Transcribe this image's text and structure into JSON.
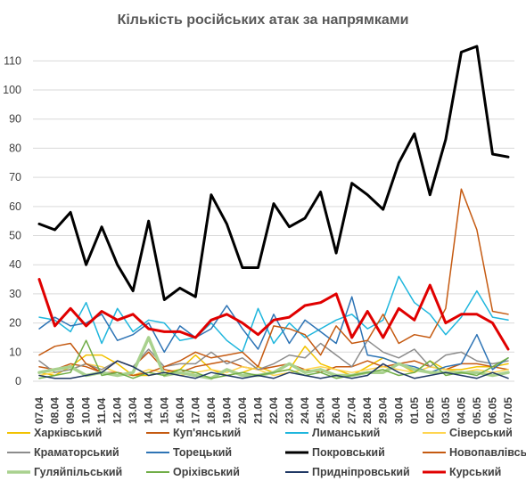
{
  "chart_data": {
    "type": "line",
    "title": "Кількість російських атак за напрямками",
    "xlabel": "",
    "ylabel": "",
    "ylim": [
      0,
      115
    ],
    "yticks": [
      0,
      10,
      20,
      30,
      40,
      50,
      60,
      70,
      80,
      90,
      100,
      110
    ],
    "grid": true,
    "legend_position": "bottom",
    "categories": [
      "07.04",
      "08.04",
      "09.04",
      "10.04",
      "11.04",
      "12.04",
      "13.04",
      "14.04",
      "15.04",
      "16.04",
      "17.04",
      "18.04",
      "19.04",
      "20.04",
      "21.04",
      "22.04",
      "23.04",
      "24.04",
      "25.04",
      "26.04",
      "27.04",
      "28.04",
      "29.04",
      "30.04",
      "01.05",
      "02.05",
      "03.05",
      "04.05",
      "05.05",
      "06.05",
      "07.05"
    ],
    "series": [
      {
        "name": "Харківський",
        "color": "#f2c200",
        "width": 1.5,
        "values": [
          3,
          2,
          5,
          9,
          9,
          6,
          2,
          2,
          3,
          4,
          9,
          4,
          2,
          3,
          5,
          3,
          4,
          12,
          6,
          4,
          2,
          5,
          8,
          6,
          3,
          7,
          4,
          4,
          5,
          5,
          6
        ]
      },
      {
        "name": "Куп'янський",
        "color": "#c55a11",
        "width": 1.5,
        "values": [
          5,
          4,
          6,
          5,
          3,
          7,
          5,
          10,
          4,
          3,
          5,
          6,
          7,
          5,
          4,
          5,
          6,
          4,
          3,
          5,
          5,
          7,
          5,
          6,
          7,
          5,
          4,
          6,
          6,
          5,
          4
        ]
      },
      {
        "name": "Лиманський",
        "color": "#1fb6dd",
        "width": 1.5,
        "values": [
          22,
          21,
          17,
          27,
          13,
          25,
          17,
          21,
          20,
          14,
          15,
          20,
          14,
          10,
          25,
          13,
          20,
          15,
          18,
          21,
          23,
          18,
          21,
          36,
          27,
          23,
          16,
          22,
          31,
          22,
          21
        ]
      },
      {
        "name": "Сіверський",
        "color": "#ffd54f",
        "width": 1.5,
        "values": [
          2,
          3,
          4,
          6,
          5,
          3,
          2,
          4,
          3,
          2,
          3,
          4,
          3,
          5,
          4,
          2,
          3,
          4,
          5,
          4,
          3,
          4,
          5,
          4,
          3,
          5,
          4,
          3,
          4,
          3,
          4
        ]
      },
      {
        "name": "Краматорський",
        "color": "#8c8c8c",
        "width": 1.5,
        "values": [
          7,
          3,
          4,
          6,
          4,
          7,
          5,
          11,
          5,
          6,
          6,
          10,
          6,
          8,
          4,
          6,
          9,
          8,
          13,
          9,
          5,
          14,
          10,
          8,
          11,
          5,
          9,
          10,
          7,
          6,
          7
        ]
      },
      {
        "name": "Торецький",
        "color": "#2e74b5",
        "width": 1.5,
        "values": [
          18,
          22,
          19,
          20,
          23,
          14,
          16,
          20,
          10,
          19,
          15,
          18,
          26,
          18,
          11,
          23,
          13,
          21,
          17,
          13,
          29,
          9,
          8,
          6,
          5,
          3,
          5,
          6,
          16,
          4,
          8
        ]
      },
      {
        "name": "Покровський",
        "color": "#000000",
        "width": 3.0,
        "values": [
          54,
          52,
          58,
          40,
          53,
          40,
          31,
          55,
          28,
          32,
          29,
          64,
          54,
          39,
          39,
          61,
          53,
          56,
          65,
          44,
          68,
          64,
          59,
          75,
          85,
          64,
          83,
          113,
          115,
          78,
          77
        ]
      },
      {
        "name": "Новопавлівський",
        "color": "#c55a11",
        "width": 1.5,
        "values": [
          9,
          12,
          13,
          6,
          3,
          3,
          2,
          3,
          5,
          7,
          10,
          8,
          9,
          10,
          5,
          19,
          18,
          16,
          9,
          19,
          13,
          14,
          23,
          13,
          16,
          15,
          25,
          66,
          52,
          24,
          23
        ]
      },
      {
        "name": "Гуляйпільський",
        "color": "#a9d18e",
        "width": 3.5,
        "values": [
          3,
          4,
          5,
          2,
          3,
          2,
          3,
          15,
          2,
          3,
          2,
          1,
          4,
          2,
          2,
          3,
          6,
          3,
          4,
          2,
          2,
          3,
          3,
          6,
          4,
          3,
          3,
          3,
          3,
          2,
          3
        ]
      },
      {
        "name": "Оріхівський",
        "color": "#70ad47",
        "width": 1.5,
        "values": [
          1,
          2,
          3,
          14,
          2,
          3,
          1,
          3,
          2,
          4,
          3,
          1,
          2,
          3,
          2,
          3,
          4,
          2,
          3,
          1,
          2,
          3,
          4,
          2,
          3,
          7,
          2,
          3,
          2,
          5,
          8
        ]
      },
      {
        "name": "Придніпровський",
        "color": "#1f3864",
        "width": 1.5,
        "values": [
          2,
          1,
          1,
          2,
          3,
          7,
          5,
          2,
          3,
          2,
          1,
          3,
          2,
          1,
          2,
          1,
          3,
          2,
          1,
          2,
          1,
          2,
          6,
          3,
          1,
          2,
          3,
          2,
          1,
          3,
          1
        ]
      },
      {
        "name": "Курський",
        "color": "#e00000",
        "width": 3.0,
        "values": [
          35,
          19,
          25,
          19,
          24,
          21,
          23,
          18,
          17,
          17,
          15,
          21,
          23,
          20,
          16,
          21,
          22,
          26,
          27,
          30,
          15,
          24,
          15,
          25,
          21,
          33,
          20,
          23,
          23,
          20,
          11
        ]
      }
    ]
  }
}
